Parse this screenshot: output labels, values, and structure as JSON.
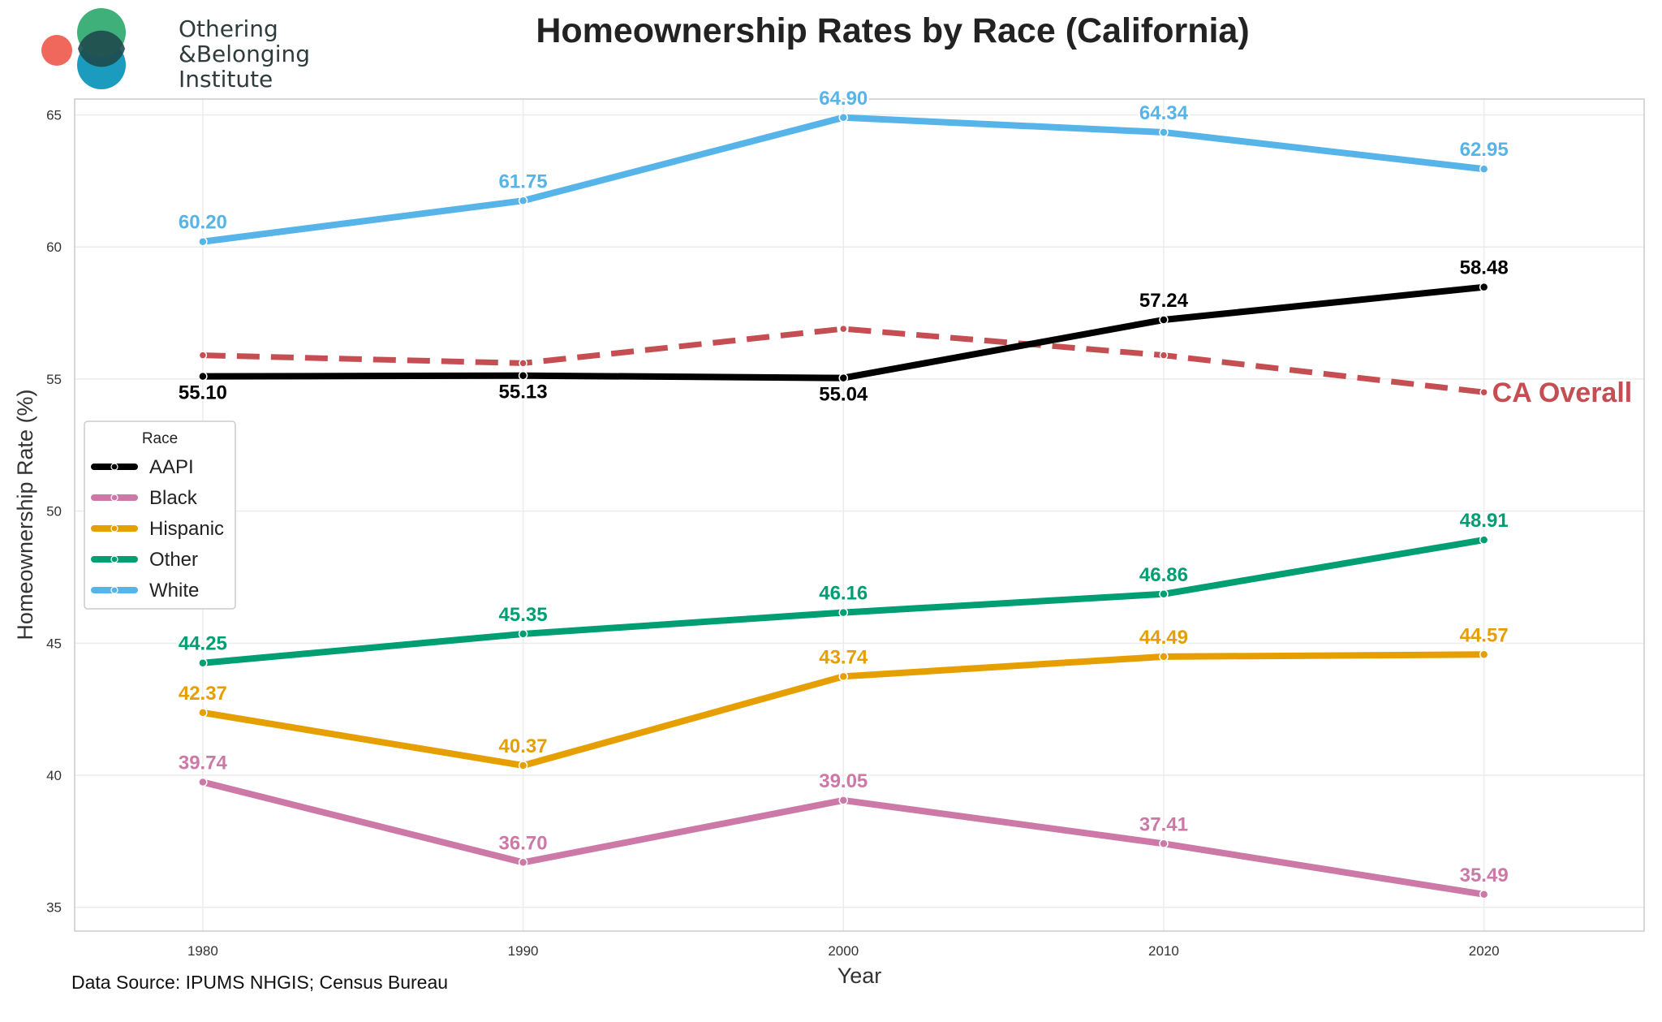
{
  "logo": {
    "lines": [
      "Othering",
      "&Belonging",
      "Institute"
    ],
    "colors": {
      "green": "#3fb07a",
      "blue": "#1b9bbd",
      "coral": "#f0675b",
      "overlap": "#1f4a4e"
    }
  },
  "source_note": "Data Source: IPUMS NHGIS; Census Bureau",
  "chart_data": {
    "type": "line",
    "title": "Homeownership Rates by Race (California)",
    "xlabel": "Year",
    "ylabel": "Homeownership Rate (%)",
    "x": [
      1980,
      1990,
      2000,
      2010,
      2020
    ],
    "xlim": [
      1976,
      2025
    ],
    "ylim": [
      34.1,
      65.6
    ],
    "yticks": [
      35,
      40,
      45,
      50,
      55,
      60,
      65
    ],
    "grid": true,
    "legend": {
      "title": "Race",
      "placement": "left-center"
    },
    "series": [
      {
        "name": "AAPI",
        "color": "#000000",
        "values": [
          55.1,
          55.13,
          55.04,
          57.24,
          58.48
        ],
        "labels": [
          "55.10",
          "55.13",
          "55.04",
          "57.24",
          "58.48"
        ],
        "label_pos": [
          "below",
          "below",
          "below",
          "above",
          "above"
        ]
      },
      {
        "name": "Black",
        "color": "#cc79a7",
        "values": [
          39.74,
          36.7,
          39.05,
          37.41,
          35.49
        ],
        "labels": [
          "39.74",
          "36.70",
          "39.05",
          "37.41",
          "35.49"
        ],
        "label_pos": [
          "above",
          "above",
          "above",
          "above",
          "above"
        ]
      },
      {
        "name": "Hispanic",
        "color": "#e69f00",
        "values": [
          42.37,
          40.37,
          43.74,
          44.49,
          44.57
        ],
        "labels": [
          "42.37",
          "40.37",
          "43.74",
          "44.49",
          "44.57"
        ],
        "label_pos": [
          "above",
          "above",
          "above",
          "above",
          "above"
        ]
      },
      {
        "name": "Other",
        "color": "#009e73",
        "values": [
          44.25,
          45.35,
          46.16,
          46.86,
          48.91
        ],
        "labels": [
          "44.25",
          "45.35",
          "46.16",
          "46.86",
          "48.91"
        ],
        "label_pos": [
          "above",
          "above",
          "above",
          "above",
          "above"
        ]
      },
      {
        "name": "White",
        "color": "#56b4e9",
        "values": [
          60.2,
          61.75,
          64.9,
          64.34,
          62.95
        ],
        "labels": [
          "60.20",
          "61.75",
          "64.90",
          "64.34",
          "62.95"
        ],
        "label_pos": [
          "above",
          "above",
          "above",
          "above",
          "above"
        ]
      }
    ],
    "reference_line": {
      "label": "CA Overall",
      "color": "#c44e52",
      "style": "dashed",
      "values": [
        55.9,
        55.6,
        56.9,
        55.9,
        54.5
      ]
    }
  }
}
